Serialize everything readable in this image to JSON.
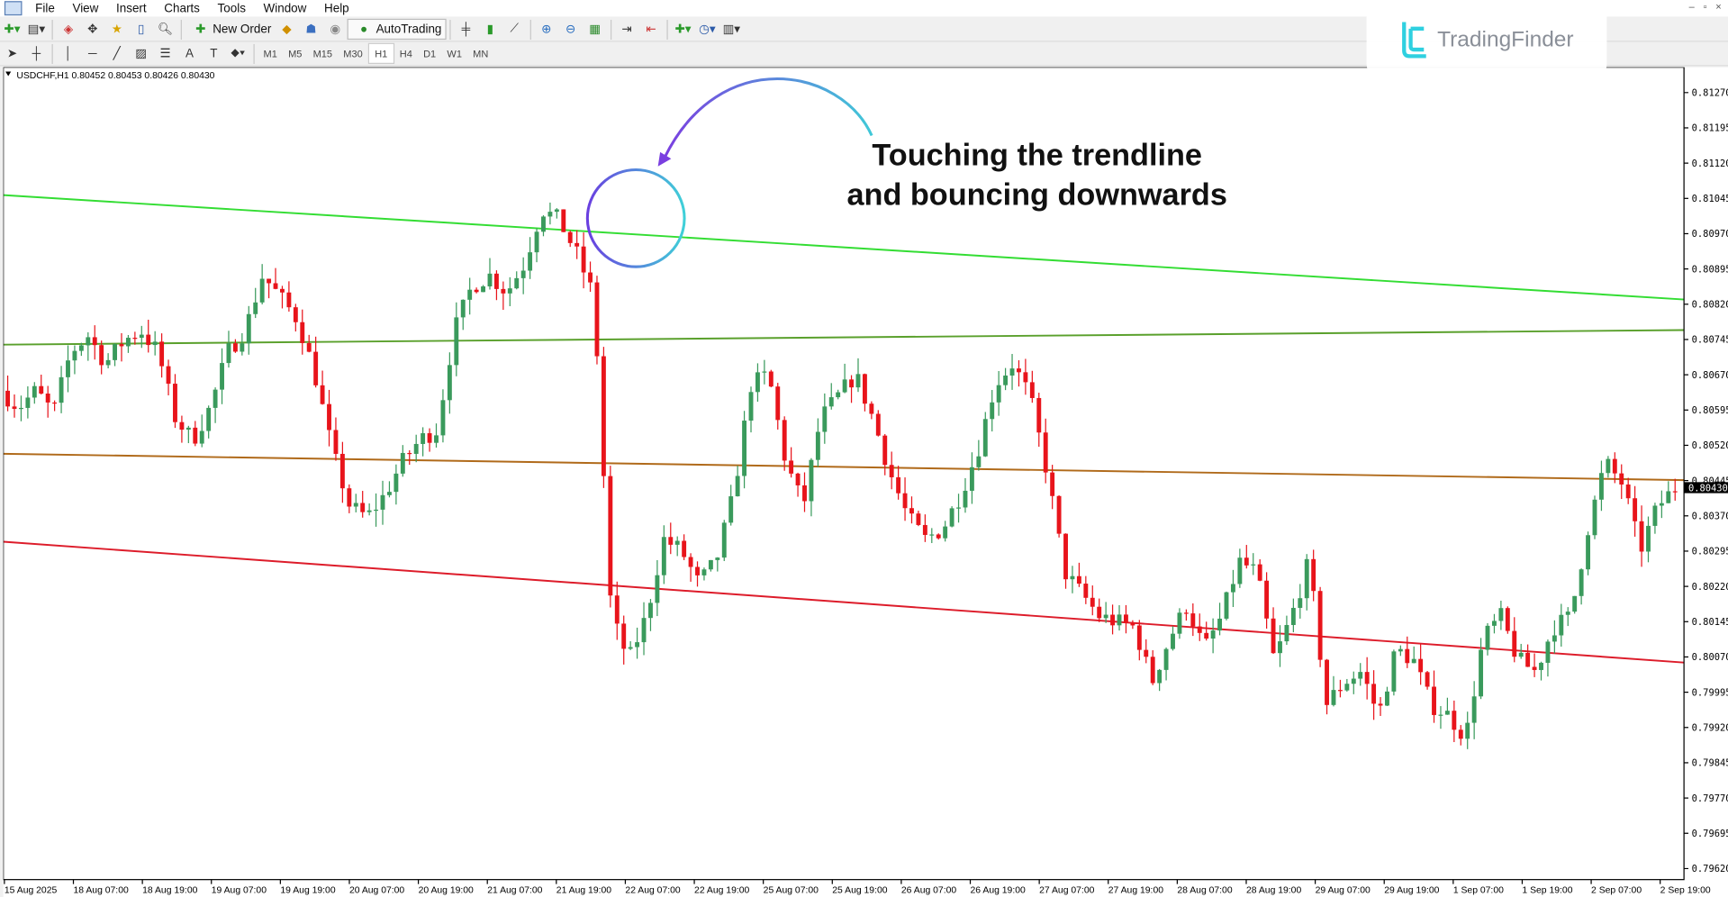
{
  "menu": [
    "File",
    "View",
    "Insert",
    "Charts",
    "Tools",
    "Window",
    "Help"
  ],
  "toolbar": {
    "new_order": "New Order",
    "autotrading": "AutoTrading",
    "timeframes": [
      "M1",
      "M5",
      "M15",
      "M30",
      "H1",
      "H4",
      "D1",
      "W1",
      "MN"
    ],
    "active_timeframe": "H1"
  },
  "logo": {
    "text": "TradingFinder"
  },
  "chart_header": "USDCHF,H1  0.80452 0.80453 0.80426 0.80430",
  "annotation": {
    "line1": "Touching the trendline",
    "line2": "and bouncing downwards"
  },
  "colors": {
    "bull": "#3a9a5c",
    "bear": "#e8141b",
    "upper_trendline": "#33dd33",
    "olive_line": "#5aa02c",
    "brown_line": "#b06a1a",
    "lower_trendline": "#dd1c2a",
    "circle": "#5b5be0",
    "arrow": "#40c8d8"
  },
  "chart_data": {
    "type": "candlestick",
    "symbol": "USDCHF",
    "timeframe": "H1",
    "ylim": [
      0.7959,
      0.8131
    ],
    "price_ticks": [
      "0.81270",
      "0.81195",
      "0.81120",
      "0.81045",
      "0.80970",
      "0.80895",
      "0.80820",
      "0.80745",
      "0.80670",
      "0.80595",
      "0.80520",
      "0.80445",
      "0.80370",
      "0.80295",
      "0.80220",
      "0.80145",
      "0.80070",
      "0.79995",
      "0.79920",
      "0.79845",
      "0.79770",
      "0.79695",
      "0.79620"
    ],
    "current_price": "0.80430",
    "time_ticks": [
      "15 Aug 2025",
      "18 Aug 07:00",
      "18 Aug 19:00",
      "19 Aug 07:00",
      "19 Aug 19:00",
      "20 Aug 07:00",
      "20 Aug 19:00",
      "21 Aug 07:00",
      "21 Aug 19:00",
      "22 Aug 07:00",
      "22 Aug 19:00",
      "25 Aug 07:00",
      "25 Aug 19:00",
      "26 Aug 07:00",
      "26 Aug 19:00",
      "27 Aug 07:00",
      "27 Aug 19:00",
      "28 Aug 07:00",
      "28 Aug 19:00",
      "29 Aug 07:00",
      "29 Aug 19:00",
      "1 Sep 07:00",
      "1 Sep 19:00",
      "2 Sep 07:00",
      "2 Sep 19:00"
    ],
    "price_path": [
      0.80636,
      0.80601,
      0.80636,
      0.80589,
      0.80718,
      0.80753,
      0.80694,
      0.80741,
      0.80765,
      0.80718,
      0.80577,
      0.80531,
      0.80601,
      0.80718,
      0.80765,
      0.80882,
      0.80835,
      0.80788,
      0.80671,
      0.80507,
      0.8039,
      0.80367,
      0.80414,
      0.80484,
      0.80531,
      0.80554,
      0.80765,
      0.80858,
      0.80882,
      0.80846,
      0.80905,
      0.81022,
      0.80999,
      0.80928,
      0.80835,
      0.80156,
      0.80063,
      0.80156,
      0.8032,
      0.80297,
      0.80226,
      0.80273,
      0.80414,
      0.80648,
      0.80671,
      0.80484,
      0.8039,
      0.80577,
      0.80624,
      0.80671,
      0.80577,
      0.8046,
      0.80367,
      0.8032,
      0.80343,
      0.80414,
      0.80507,
      0.80648,
      0.80694,
      0.80624,
      0.8046,
      0.8025,
      0.80203,
      0.80156,
      0.80144,
      0.80133,
      0.80016,
      0.80109,
      0.8018,
      0.80086,
      0.80156,
      0.80273,
      0.8025,
      0.80063,
      0.80156,
      0.80273,
      0.79969,
      0.80016,
      0.80039,
      0.79946,
      0.80086,
      0.80063,
      0.79969,
      0.79946,
      0.79899,
      0.80109,
      0.80156,
      0.80063,
      0.80039,
      0.80133,
      0.80156,
      0.80343,
      0.80484,
      0.80437,
      0.80297,
      0.8039,
      0.8043
    ],
    "lines": [
      {
        "id": "upper-trendline",
        "start": 0.81052,
        "end": 0.8083
      },
      {
        "id": "olive-line",
        "start": 0.80734,
        "end": 0.80765
      },
      {
        "id": "brown-line",
        "start": 0.80502,
        "end": 0.80446
      },
      {
        "id": "lower-trendline",
        "start": 0.80315,
        "end": 0.80058
      }
    ]
  }
}
